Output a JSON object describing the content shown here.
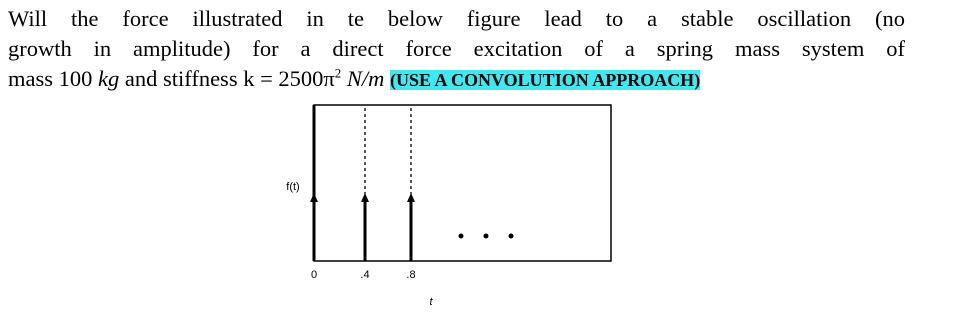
{
  "question": {
    "line1": "Will the force illustrated in te below figure lead to a stable oscillation (no",
    "line2": "growth in amplitude) for a direct force excitation of a spring mass system of",
    "line3": [
      "mass 100",
      "kg",
      "and stiffness k = 2500π",
      "2",
      "N/m",
      "(USE A CONVOLUTION APPROACH)"
    ]
  },
  "figure": {
    "ylabel": "f(t)",
    "xlabel": "t",
    "ticks": [
      "0",
      ".4",
      ".8"
    ]
  }
}
